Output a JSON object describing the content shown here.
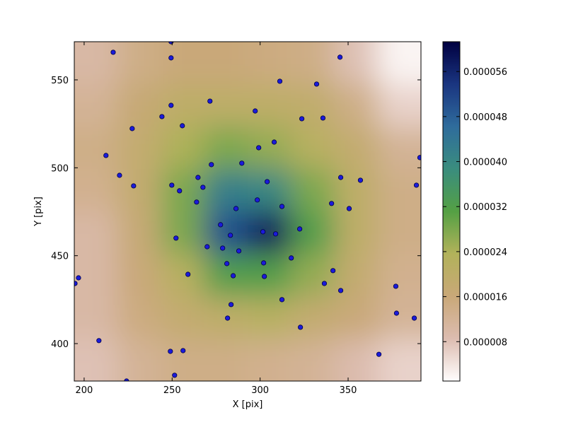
{
  "chart_data": {
    "type": "scatter",
    "x_label": "X [pix]",
    "y_label": "Y [pix]",
    "xlim": [
      194.4,
      391.4
    ],
    "ylim": [
      378.7,
      571.7
    ],
    "xticks": [
      200,
      250,
      300,
      350
    ],
    "yticks": [
      400,
      450,
      500,
      550
    ],
    "marker_color": "#1a1adb",
    "marker_edge": "#000044",
    "x": [
      249.4,
      216.5,
      249.4,
      345.4,
      311.2,
      332.1,
      249.4,
      271.5,
      297.2,
      244.2,
      323.7,
      335.7,
      227.3,
      255.8,
      308,
      299.2,
      212.4,
      390.8,
      289.6,
      272.3,
      220.1,
      264.7,
      345.8,
      304,
      357,
      249.8,
      228.1,
      388.8,
      267.5,
      254.2,
      263.9,
      298.4,
      340.6,
      312.4,
      286.3,
      350.6,
      277.5,
      322.5,
      301.6,
      308.8,
      283.1,
      252.2,
      269.9,
      278.7,
      287.9,
      317.7,
      302,
      281.1,
      341.4,
      259,
      284.7,
      302.4,
      336.5,
      377.1,
      345.8,
      312.4,
      283.5,
      377.5,
      281.5,
      387.6,
      322.9,
      208.4,
      249,
      256.2,
      367.5,
      251.4,
      224.1,
      196.8,
      194.8
    ],
    "y": [
      571.7,
      565.7,
      562.5,
      562.9,
      549.2,
      547.6,
      535.5,
      537.9,
      532.3,
      529.1,
      527.9,
      528.3,
      522.3,
      523.9,
      514.6,
      511.4,
      507,
      505.8,
      502.6,
      501.8,
      495.7,
      494.5,
      494.5,
      492.1,
      492.9,
      490.1,
      489.7,
      490.1,
      488.9,
      486.9,
      480.5,
      481.7,
      479.7,
      478,
      476.8,
      476.8,
      467.6,
      465.2,
      463.6,
      462.4,
      461.6,
      460,
      455.1,
      454.3,
      452.7,
      448.7,
      445.9,
      445.5,
      441.5,
      439.4,
      438.6,
      438.2,
      434.2,
      432.6,
      430.2,
      425,
      422.2,
      417.3,
      414.5,
      414.5,
      409.3,
      401.7,
      395.6,
      396,
      393.9,
      382,
      378.7,
      437.4,
      434.2
    ],
    "heatmap": {
      "x": [
        206.7,
        231.3,
        256,
        280.6,
        305.2,
        329.8,
        354.5,
        379.1
      ],
      "y": [
        559.6,
        535.4,
        511.3,
        487.2,
        463.1,
        439,
        414.8,
        390.7
      ],
      "z": [
        [
          1e-05,
          1.4e-05,
          1.6e-05,
          1.6e-05,
          1.5e-05,
          1.4e-05,
          8e-06,
          2e-06
        ],
        [
          1.2e-05,
          1.7e-05,
          2e-05,
          2e-05,
          2e-05,
          1.9e-05,
          1.4e-05,
          6e-06
        ],
        [
          1.4e-05,
          1.8e-05,
          2.4e-05,
          2.8e-05,
          2.6e-05,
          2.2e-05,
          1.8e-05,
          1.2e-05
        ],
        [
          1.3e-05,
          1.8e-05,
          2.8e-05,
          4.2e-05,
          4e-05,
          2.8e-05,
          2e-05,
          1.4e-05
        ],
        [
          1e-05,
          1.7e-05,
          2.8e-05,
          5e-05,
          5.8e-05,
          3.2e-05,
          2e-05,
          1.4e-05
        ],
        [
          1e-05,
          1.6e-05,
          2.2e-05,
          3.2e-05,
          3.2e-05,
          2.6e-05,
          1.8e-05,
          1.3e-05
        ],
        [
          1e-05,
          1.5e-05,
          1.8e-05,
          2e-05,
          2.2e-05,
          1.8e-05,
          1.6e-05,
          1.2e-05
        ],
        [
          8e-06,
          1.2e-05,
          1.4e-05,
          1.4e-05,
          1.3e-05,
          1.2e-05,
          9e-06,
          6e-06
        ]
      ]
    },
    "clim": [
      1e-06,
      6.13e-05
    ],
    "colorbar_ticks": [
      {
        "value": 8e-06,
        "label": "0.000008"
      },
      {
        "value": 1.6e-05,
        "label": "0.000016"
      },
      {
        "value": 2.4e-05,
        "label": "0.000024"
      },
      {
        "value": 3.2e-05,
        "label": "0.000032"
      },
      {
        "value": 4e-05,
        "label": "0.000040"
      },
      {
        "value": 4.8e-05,
        "label": "0.000048"
      },
      {
        "value": 5.6e-05,
        "label": "0.000056"
      }
    ],
    "colormap": [
      "#fffdfd",
      "#dcbcb0",
      "#c9a878",
      "#b2b25a",
      "#54a044",
      "#3a8d7e",
      "#2f6c9c",
      "#1a3580",
      "#000040"
    ]
  }
}
